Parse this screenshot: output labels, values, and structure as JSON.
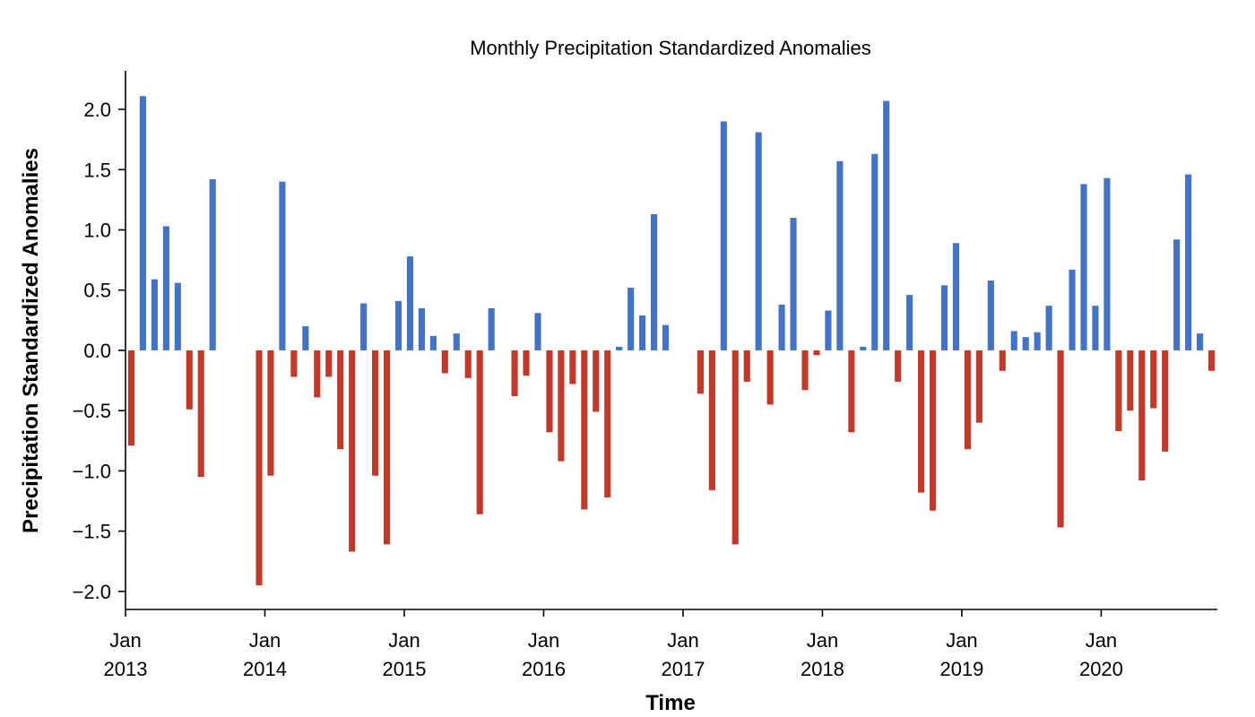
{
  "chart_data": {
    "type": "bar",
    "title": "Monthly Precipitation Standardized Anomalies",
    "xlabel": "Time",
    "ylabel": "Precipitation Standardized Anomalies",
    "ylim": [
      -2.15,
      2.32
    ],
    "yticks": [
      "2.0",
      "1.5",
      "1.0",
      "0.5",
      "0.0",
      "−0.5",
      "−1.0",
      "−1.5",
      "−2.0"
    ],
    "ytick_values": [
      2.0,
      1.5,
      1.0,
      0.5,
      0.0,
      -0.5,
      -1.0,
      -1.5,
      -2.0
    ],
    "xlim": [
      "2013-01",
      "2020-11"
    ],
    "xticks": [
      {
        "month": "Jan",
        "year": "2013",
        "date": "2013-01"
      },
      {
        "month": "Jan",
        "year": "2014",
        "date": "2014-01"
      },
      {
        "month": "Jan",
        "year": "2015",
        "date": "2015-01"
      },
      {
        "month": "Jan",
        "year": "2016",
        "date": "2016-01"
      },
      {
        "month": "Jan",
        "year": "2017",
        "date": "2017-01"
      },
      {
        "month": "Jan",
        "year": "2018",
        "date": "2018-01"
      },
      {
        "month": "Jan",
        "year": "2019",
        "date": "2019-01"
      },
      {
        "month": "Jan",
        "year": "2020",
        "date": "2020-01"
      }
    ],
    "positive_color": "#4472c4",
    "negative_color": "#c0392b",
    "grid": false,
    "series": [
      {
        "x": [
          "2013-01",
          "2013-02",
          "2013-03",
          "2013-04",
          "2013-05",
          "2013-06",
          "2013-07",
          "2013-08",
          "2013-09",
          "2013-10",
          "2013-11",
          "2013-12",
          "2014-01",
          "2014-02",
          "2014-03",
          "2014-04",
          "2014-05",
          "2014-06",
          "2014-07",
          "2014-08",
          "2014-09",
          "2014-10",
          "2014-11",
          "2014-12",
          "2015-01",
          "2015-02",
          "2015-03",
          "2015-04",
          "2015-05",
          "2015-06",
          "2015-07",
          "2015-08",
          "2015-09",
          "2015-10",
          "2015-11",
          "2015-12",
          "2016-01",
          "2016-02",
          "2016-03",
          "2016-04",
          "2016-05",
          "2016-06",
          "2016-07",
          "2016-08",
          "2016-09",
          "2016-10",
          "2016-11",
          "2016-12",
          "2017-01",
          "2017-02",
          "2017-03",
          "2017-04",
          "2017-05",
          "2017-06",
          "2017-07",
          "2017-08",
          "2017-09",
          "2017-10",
          "2017-11",
          "2017-12",
          "2018-01",
          "2018-02",
          "2018-03",
          "2018-04",
          "2018-05",
          "2018-06",
          "2018-07",
          "2018-08",
          "2018-09",
          "2018-10",
          "2018-11",
          "2018-12",
          "2019-01",
          "2019-02",
          "2019-03",
          "2019-04",
          "2019-05",
          "2019-06",
          "2019-07",
          "2019-08",
          "2019-09",
          "2019-10",
          "2019-11",
          "2019-12",
          "2020-01",
          "2020-02",
          "2020-03",
          "2020-04",
          "2020-05",
          "2020-06",
          "2020-07",
          "2020-08",
          "2020-09",
          "2020-10"
        ],
        "values": [
          -0.79,
          2.11,
          0.59,
          1.03,
          0.56,
          -0.49,
          -1.05,
          1.42,
          0.0,
          0.0,
          0.0,
          -1.95,
          -1.04,
          1.4,
          -0.22,
          0.2,
          -0.39,
          -0.22,
          -0.82,
          -1.67,
          0.39,
          -1.04,
          -1.61,
          0.41,
          0.78,
          0.35,
          0.12,
          -0.19,
          0.14,
          -0.23,
          -1.36,
          0.35,
          0.0,
          -0.38,
          -0.21,
          0.31,
          -0.68,
          -0.92,
          -0.28,
          -1.32,
          -0.51,
          -1.22,
          0.03,
          0.52,
          0.29,
          1.13,
          0.21,
          0.0,
          0.0,
          -0.36,
          -1.16,
          1.9,
          -1.61,
          -0.26,
          1.81,
          -0.45,
          0.38,
          1.1,
          -0.33,
          -0.04,
          0.33,
          1.57,
          -0.68,
          0.03,
          1.63,
          2.07,
          -0.26,
          0.46,
          -1.18,
          -1.33,
          0.54,
          0.89,
          -0.82,
          -0.6,
          0.58,
          -0.17,
          0.16,
          0.11,
          0.15,
          0.37,
          -1.47,
          0.67,
          1.38,
          0.37,
          1.43,
          -0.67,
          -0.5,
          -1.08,
          -0.48,
          -0.84,
          0.92,
          1.46,
          0.14,
          -0.17
        ]
      }
    ]
  }
}
